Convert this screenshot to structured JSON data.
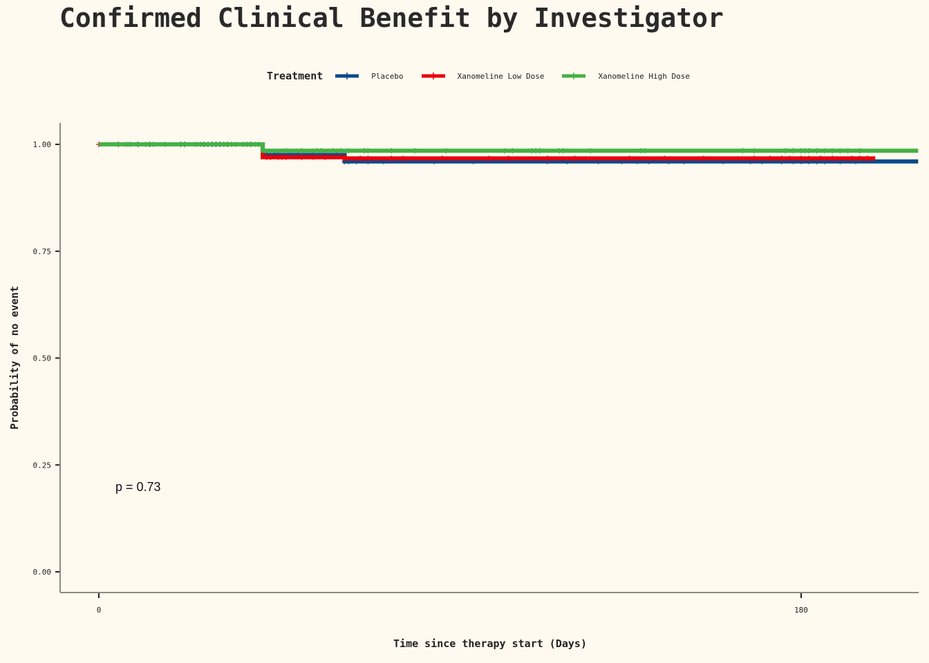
{
  "title": "Confirmed Clinical Benefit by Investigator",
  "legend": {
    "title": "Treatment",
    "items": [
      {
        "label": "Placebo",
        "color": "#0a4b8c"
      },
      {
        "label": "Xanomeline Low Dose",
        "color": "#e8000b"
      },
      {
        "label": "Xanomeline High Dose",
        "color": "#45b146"
      }
    ]
  },
  "annotation": "p = 0.73",
  "chart_data": {
    "type": "line",
    "title": "Confirmed Clinical Benefit by Investigator",
    "xlabel": "Time since therapy start (Days)",
    "ylabel": "Probability of no event",
    "xlim": [
      -10,
      210
    ],
    "ylim": [
      -0.05,
      1.05
    ],
    "x_ticks": [
      0,
      180
    ],
    "x_tick_labels": [
      "0",
      "180"
    ],
    "y_ticks": [
      0,
      0.25,
      0.5,
      0.75,
      1.0
    ],
    "y_tick_labels": [
      "0.00",
      "0.25",
      "0.50",
      "0.75",
      "1.00"
    ],
    "grid": false,
    "legend_position": "top",
    "series": [
      {
        "name": "Placebo",
        "color": "#0a4b8c",
        "steps": [
          [
            0,
            1.0
          ],
          [
            42,
            0.975
          ],
          [
            63,
            0.96
          ],
          [
            210,
            0.96
          ]
        ],
        "censor_times": [
          10,
          13,
          22,
          27,
          29,
          30,
          31,
          33,
          43,
          45,
          46,
          49,
          51,
          55,
          57,
          61,
          63,
          64,
          66,
          69,
          73,
          86,
          96,
          115,
          120,
          128,
          134,
          138,
          141,
          146,
          150,
          160,
          167,
          170,
          175,
          178,
          180,
          182,
          184,
          186,
          190,
          194
        ]
      },
      {
        "name": "Xanomeline Low Dose",
        "color": "#e8000b",
        "steps": [
          [
            0,
            1.0
          ],
          [
            42,
            0.97
          ],
          [
            63,
            0.967
          ],
          [
            199,
            0.967
          ]
        ],
        "censor_times": [
          0,
          5,
          21,
          39,
          43,
          44,
          46,
          47,
          48,
          52,
          55,
          58,
          63,
          67,
          69,
          75,
          78,
          88,
          100,
          105,
          115,
          122,
          136,
          145,
          155,
          168,
          172,
          175,
          177,
          180,
          182,
          185,
          188,
          193,
          195,
          197
        ]
      },
      {
        "name": "Xanomeline High Dose",
        "color": "#45b146",
        "steps": [
          [
            0,
            1.0
          ],
          [
            42,
            0.985
          ],
          [
            210,
            0.985
          ]
        ],
        "censor_times": [
          7,
          8,
          12,
          14,
          17,
          25,
          26,
          28,
          32,
          34,
          35,
          37,
          38,
          40,
          41,
          48,
          52,
          56,
          57,
          60,
          62,
          64,
          68,
          69,
          75,
          81,
          89,
          104,
          106,
          111,
          112,
          113,
          118,
          119,
          126,
          139,
          140,
          165,
          168,
          176,
          178,
          180,
          181,
          182,
          184,
          186,
          188,
          190,
          192,
          195
        ]
      }
    ]
  }
}
